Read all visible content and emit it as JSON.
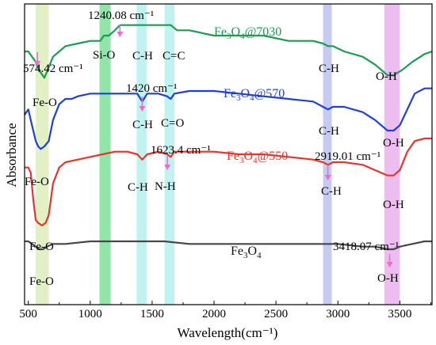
{
  "chart_data": {
    "type": "line",
    "xlabel": "Wavelength(cm⁻¹)",
    "ylabel": "Absorbance",
    "xlim": [
      470,
      3760
    ],
    "x_ticks": [
      500,
      1000,
      1500,
      2000,
      2500,
      3000,
      3500
    ],
    "x_tick_labels": [
      "500",
      "1000",
      "1500",
      "2000",
      "2500",
      "3000",
      "3500"
    ],
    "y_ticks": "none",
    "grid": false,
    "bands": [
      {
        "x_from": 560,
        "x_to": 665,
        "color": "#dcefb8"
      },
      {
        "x_from": 1075,
        "x_to": 1165,
        "color": "#7fe09a"
      },
      {
        "x_from": 1375,
        "x_to": 1455,
        "color": "#b5f0ec"
      },
      {
        "x_from": 1600,
        "x_to": 1680,
        "color": "#b5f0ec"
      },
      {
        "x_from": 2880,
        "x_to": 2950,
        "color": "#bcc3ee"
      },
      {
        "x_from": 3375,
        "x_to": 3500,
        "color": "#eab2ef"
      }
    ],
    "series": [
      {
        "name_base": "Fe",
        "name_sub": "3",
        "name_mid": "O",
        "name_sub2": "4",
        "name_tail": "@7030",
        "color": "#1a9c52",
        "points": [
          [
            470,
            108
          ],
          [
            500,
            108
          ],
          [
            530,
            107
          ],
          [
            560,
            106
          ],
          [
            575,
            105
          ],
          [
            600,
            104
          ],
          [
            630,
            103
          ],
          [
            665,
            105
          ],
          [
            700,
            107
          ],
          [
            750,
            108
          ],
          [
            800,
            109
          ],
          [
            900,
            109.5
          ],
          [
            1000,
            110
          ],
          [
            1080,
            110
          ],
          [
            1110,
            111
          ],
          [
            1150,
            111
          ],
          [
            1200,
            112
          ],
          [
            1240,
            113
          ],
          [
            1300,
            113
          ],
          [
            1400,
            113
          ],
          [
            1500,
            113
          ],
          [
            1600,
            113
          ],
          [
            1650,
            113
          ],
          [
            1700,
            112
          ],
          [
            1800,
            112
          ],
          [
            2000,
            111
          ],
          [
            2200,
            111
          ],
          [
            2400,
            111
          ],
          [
            2600,
            110
          ],
          [
            2800,
            110
          ],
          [
            2880,
            109.5
          ],
          [
            2920,
            109
          ],
          [
            2960,
            109
          ],
          [
            3050,
            108
          ],
          [
            3200,
            107
          ],
          [
            3300,
            105.5
          ],
          [
            3400,
            103.5
          ],
          [
            3450,
            103.5
          ],
          [
            3520,
            104.5
          ],
          [
            3600,
            106
          ],
          [
            3700,
            107.5
          ],
          [
            3760,
            108
          ]
        ]
      },
      {
        "name_base": "Fe",
        "name_sub": "3",
        "name_mid": "O",
        "name_sub2": "4",
        "name_tail": "@570",
        "color": "#1f3fd6",
        "points": [
          [
            470,
            96
          ],
          [
            500,
            97
          ],
          [
            520,
            95
          ],
          [
            540,
            93
          ],
          [
            560,
            91
          ],
          [
            580,
            90
          ],
          [
            600,
            89.5
          ],
          [
            630,
            90
          ],
          [
            665,
            91
          ],
          [
            700,
            95
          ],
          [
            750,
            98
          ],
          [
            800,
            99
          ],
          [
            850,
            99
          ],
          [
            900,
            99.5
          ],
          [
            1000,
            100
          ],
          [
            1100,
            100
          ],
          [
            1200,
            100
          ],
          [
            1300,
            100
          ],
          [
            1380,
            100
          ],
          [
            1420,
            98.5
          ],
          [
            1460,
            100
          ],
          [
            1550,
            100
          ],
          [
            1620,
            99.5
          ],
          [
            1650,
            99
          ],
          [
            1680,
            100
          ],
          [
            1800,
            100.5
          ],
          [
            2000,
            100.5
          ],
          [
            2200,
            100
          ],
          [
            2400,
            99.5
          ],
          [
            2600,
            99
          ],
          [
            2800,
            98.5
          ],
          [
            2880,
            97.5
          ],
          [
            2920,
            97
          ],
          [
            2960,
            97.5
          ],
          [
            3050,
            97.5
          ],
          [
            3200,
            96.5
          ],
          [
            3300,
            95
          ],
          [
            3400,
            93
          ],
          [
            3450,
            93
          ],
          [
            3500,
            94
          ],
          [
            3560,
            97
          ],
          [
            3620,
            100
          ],
          [
            3700,
            101
          ],
          [
            3760,
            101
          ]
        ]
      },
      {
        "name_base": "Fe",
        "name_sub": "3",
        "name_mid": "O",
        "name_sub2": "4",
        "name_tail": "@550",
        "color": "#e8342c",
        "points": [
          [
            470,
            86
          ],
          [
            500,
            86
          ],
          [
            520,
            85
          ],
          [
            540,
            80
          ],
          [
            560,
            76
          ],
          [
            580,
            75.5
          ],
          [
            610,
            75
          ],
          [
            640,
            75.5
          ],
          [
            665,
            77
          ],
          [
            700,
            83
          ],
          [
            750,
            86
          ],
          [
            800,
            87
          ],
          [
            900,
            87.5
          ],
          [
            1000,
            88
          ],
          [
            1100,
            88.5
          ],
          [
            1200,
            89
          ],
          [
            1300,
            89
          ],
          [
            1380,
            88.5
          ],
          [
            1420,
            87.5
          ],
          [
            1460,
            88.5
          ],
          [
            1550,
            89
          ],
          [
            1620,
            88.5
          ],
          [
            1650,
            88
          ],
          [
            1680,
            89
          ],
          [
            1800,
            89
          ],
          [
            2000,
            89
          ],
          [
            2200,
            88.5
          ],
          [
            2400,
            88.5
          ],
          [
            2600,
            88
          ],
          [
            2800,
            87.5
          ],
          [
            2880,
            87
          ],
          [
            2920,
            86.5
          ],
          [
            2960,
            87
          ],
          [
            3050,
            87
          ],
          [
            3200,
            86.5
          ],
          [
            3300,
            85.5
          ],
          [
            3400,
            84.5
          ],
          [
            3450,
            84.5
          ],
          [
            3500,
            85.5
          ],
          [
            3560,
            89
          ],
          [
            3620,
            91
          ],
          [
            3700,
            91.5
          ],
          [
            3760,
            91.5
          ]
        ]
      },
      {
        "name_base": "Fe",
        "name_sub": "3",
        "name_mid": "O",
        "name_sub2": "4",
        "name_tail": "",
        "color": "#474747",
        "points": [
          [
            470,
            72
          ],
          [
            500,
            72
          ],
          [
            530,
            71.5
          ],
          [
            560,
            71
          ],
          [
            590,
            70.5
          ],
          [
            620,
            70.5
          ],
          [
            650,
            71
          ],
          [
            700,
            71.5
          ],
          [
            800,
            71.5
          ],
          [
            1000,
            72
          ],
          [
            1200,
            72
          ],
          [
            1400,
            72
          ],
          [
            1600,
            72
          ],
          [
            1800,
            71.5
          ],
          [
            2000,
            71.5
          ],
          [
            2200,
            71.5
          ],
          [
            2400,
            71.5
          ],
          [
            2600,
            71.5
          ],
          [
            2800,
            71.5
          ],
          [
            3000,
            71.5
          ],
          [
            3200,
            71
          ],
          [
            3300,
            71
          ],
          [
            3400,
            70.5
          ],
          [
            3450,
            70.5
          ],
          [
            3500,
            71
          ],
          [
            3600,
            71.5
          ],
          [
            3700,
            72
          ],
          [
            3760,
            72
          ]
        ]
      }
    ],
    "legend_placement": "labels next to each curve"
  },
  "annotations": {
    "peak_57442": "574.42 cm⁻¹",
    "peak_124008": "1240.08 cm⁻¹",
    "peak_1420": "1420 cm⁻¹",
    "peak_16234": "1623.4 cm⁻¹",
    "peak_291901": "2919.01 cm⁻¹",
    "peak_341807": "3418.07 cm⁻¹",
    "siO": "Si-O",
    "ch_7030": "C-H",
    "cc_7030": "C=C",
    "ch_7030_right": "C-H",
    "oh_7030": "O-H",
    "feo_7030": "Fe-O",
    "ch_570": "C-H",
    "co_570": "C=O",
    "ch_570_right": "C-H",
    "oh_570": "O-H",
    "feo_570": "Fe-O",
    "ch_550": "C-H",
    "nh_550": "N-H",
    "ch_550_right": "C-H",
    "oh_550": "O-H",
    "feo_550": "Fe-O",
    "feo_bare": "Fe-O",
    "oh_bare": "O-H"
  }
}
